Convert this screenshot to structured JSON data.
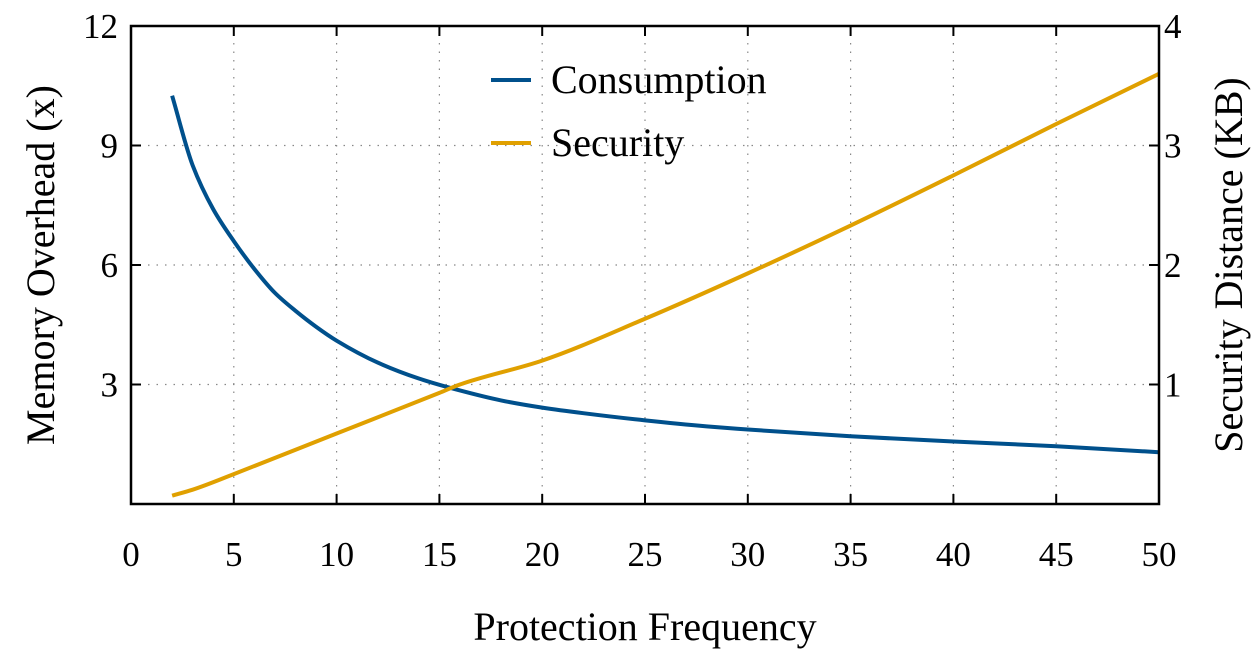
{
  "chart_data": {
    "type": "line",
    "title": "",
    "xlabel": "Protection Frequency",
    "ylabel_left": "Memory Overhead (x)",
    "ylabel_right": "Security Distance (KB)",
    "xlim": [
      0,
      50
    ],
    "ylim_left": [
      0,
      12
    ],
    "ylim_right": [
      0,
      4
    ],
    "xticks": [
      "0",
      "5",
      "10",
      "15",
      "20",
      "25",
      "30",
      "35",
      "40",
      "45",
      "50"
    ],
    "yticks_left": [
      "3",
      "6",
      "9",
      "12"
    ],
    "yticks_right": [
      "1",
      "2",
      "3",
      "4"
    ],
    "grid": true,
    "legend_position": "top-center",
    "series": [
      {
        "name": "Consumption",
        "axis": "left",
        "color": "#00508c",
        "x": [
          2,
          3,
          4,
          5,
          6,
          7,
          8,
          9,
          10,
          12,
          14,
          16,
          18,
          20,
          22,
          25,
          28,
          30,
          35,
          40,
          45,
          50
        ],
        "y": [
          10.25,
          8.5,
          7.4,
          6.6,
          5.9,
          5.3,
          4.85,
          4.45,
          4.1,
          3.55,
          3.15,
          2.85,
          2.6,
          2.42,
          2.28,
          2.1,
          1.95,
          1.87,
          1.7,
          1.57,
          1.45,
          1.3
        ]
      },
      {
        "name": "Security",
        "axis": "right",
        "color": "#e0a000",
        "x": [
          2,
          3,
          5,
          10,
          15,
          16,
          20,
          25,
          30,
          35,
          40,
          45,
          50
        ],
        "y": [
          0.07,
          0.12,
          0.25,
          0.59,
          0.93,
          1.0,
          1.2,
          1.55,
          1.93,
          2.33,
          2.75,
          3.18,
          3.6
        ]
      }
    ]
  }
}
